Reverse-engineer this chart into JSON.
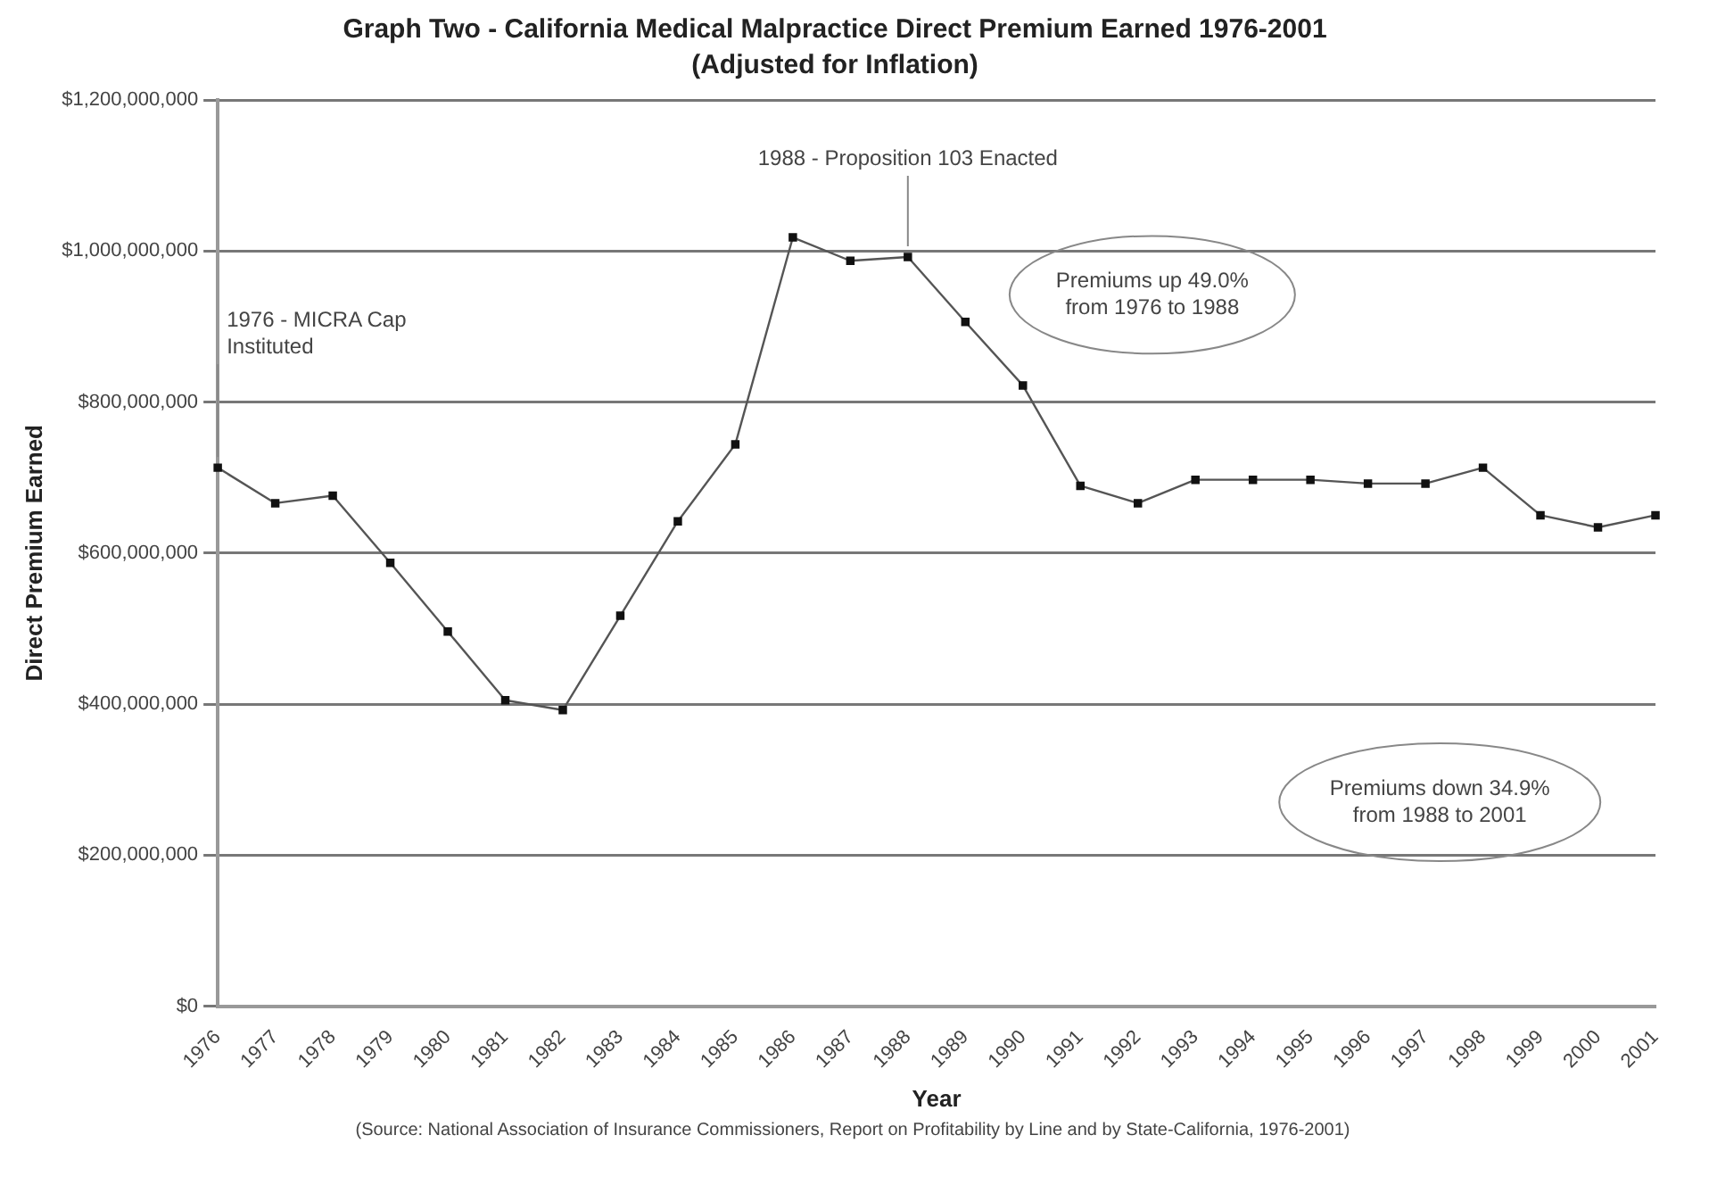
{
  "chart_data": {
    "type": "line",
    "title": "Graph Two - California Medical Malpractice Direct Premium Earned 1976-2001",
    "subtitle": "(Adjusted for Inflation)",
    "xlabel": "Year",
    "ylabel": "Direct Premium Earned",
    "categories": [
      "1976",
      "1977",
      "1978",
      "1979",
      "1980",
      "1981",
      "1982",
      "1983",
      "1984",
      "1985",
      "1986",
      "1987",
      "1988",
      "1989",
      "1990",
      "1991",
      "1992",
      "1993",
      "1994",
      "1995",
      "1996",
      "1997",
      "1998",
      "1999",
      "2000",
      "2001"
    ],
    "series": [
      {
        "color": "#555555",
        "values": [
          713000000,
          666000000,
          676000000,
          587000000,
          496000000,
          405000000,
          392000000,
          517000000,
          642000000,
          744000000,
          1018000000,
          987000000,
          992000000,
          906000000,
          822000000,
          689000000,
          666000000,
          697000000,
          697000000,
          697000000,
          692000000,
          692000000,
          713000000,
          650000000,
          634000000,
          650000000
        ]
      }
    ],
    "ylim": [
      0,
      1200000000
    ],
    "yticks": [
      {
        "value": 0,
        "label": "$0"
      },
      {
        "value": 200000000,
        "label": "$200,000,000"
      },
      {
        "value": 400000000,
        "label": "$400,000,000"
      },
      {
        "value": 600000000,
        "label": "$600,000,000"
      },
      {
        "value": 800000000,
        "label": "$800,000,000"
      },
      {
        "value": 1000000000,
        "label": "$1,000,000,000"
      },
      {
        "value": 1200000000,
        "label": "$1,200,000,000"
      }
    ],
    "grid": "y",
    "marker": "square",
    "line_style": "solid",
    "legend": false,
    "annotations": [
      {
        "text": "1976 - MICRA Cap Instituted",
        "x": "1976",
        "y": 713000000
      },
      {
        "text": "1988 - Proposition 103 Enacted",
        "x": "1988",
        "y": 992000000
      },
      "Premiums up 49.0% from 1976 to 1988",
      "Premiums down 34.9% from 1988 to 2001",
      "(Source: National Association of Insurance Commissioners, Report on Profitability by Line and by State-California, 1976-2001)"
    ]
  }
}
